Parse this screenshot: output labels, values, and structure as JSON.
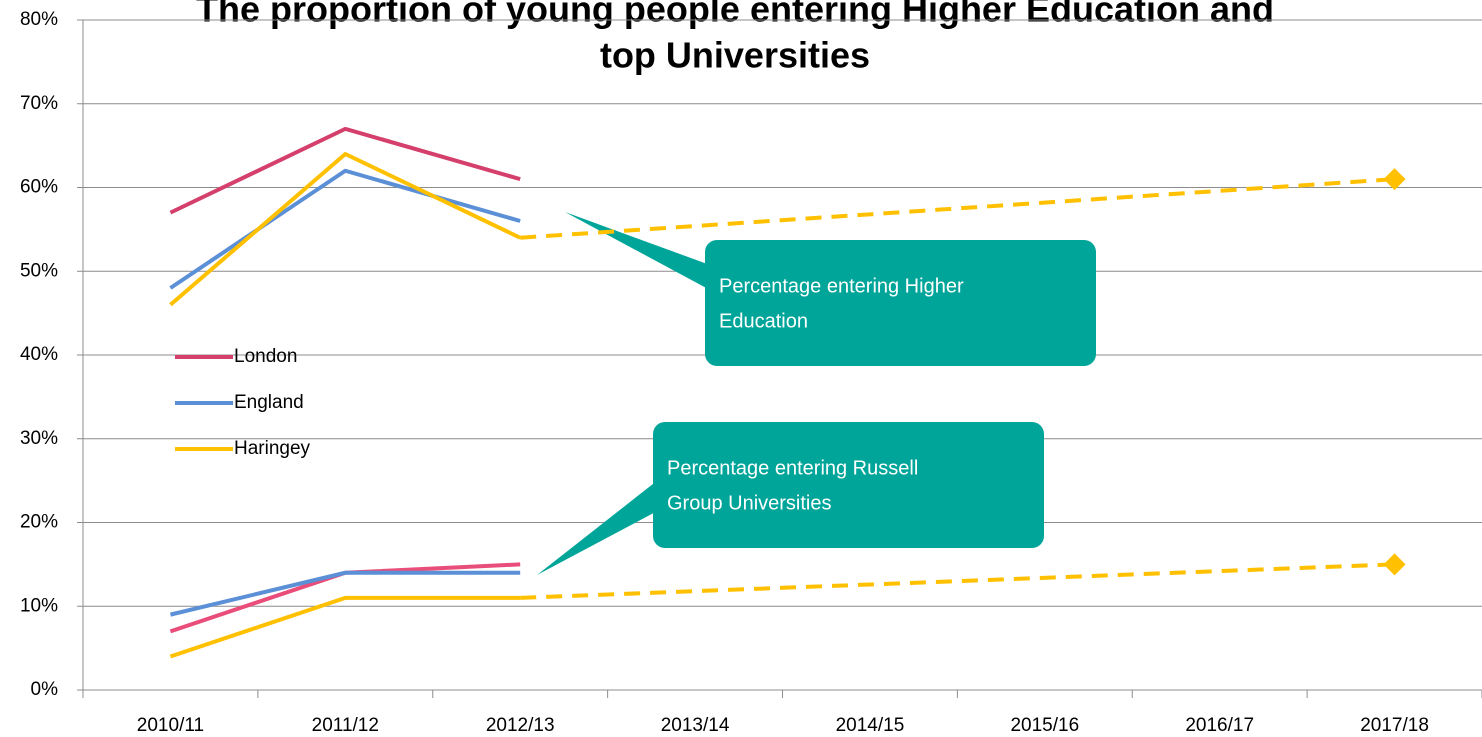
{
  "chart_data": {
    "type": "line",
    "title": [
      "The proportion of young people entering Higher Education and",
      "top Universities"
    ],
    "categories": [
      "2010/11",
      "2011/12",
      "2012/13",
      "2013/14",
      "2014/15",
      "2015/16",
      "2016/17",
      "2017/18"
    ],
    "ylim": [
      0,
      80
    ],
    "yticks": [
      {
        "value": 0,
        "label": "0%"
      },
      {
        "value": 10,
        "label": "10%"
      },
      {
        "value": 20,
        "label": "20%"
      },
      {
        "value": 30,
        "label": "30%"
      },
      {
        "value": 40,
        "label": "40%"
      },
      {
        "value": 50,
        "label": "50%"
      },
      {
        "value": 60,
        "label": "60%"
      },
      {
        "value": 70,
        "label": "70%"
      },
      {
        "value": 80,
        "label": "80%"
      }
    ],
    "grid": true,
    "legend": "left",
    "series": [
      {
        "name": "London",
        "color": "#d43f6c",
        "values": [
          57,
          67,
          61,
          null,
          null,
          null,
          null,
          null
        ]
      },
      {
        "name": "England",
        "color": "#5b8fd6",
        "values": [
          48,
          62,
          56,
          null,
          null,
          null,
          null,
          null
        ]
      },
      {
        "name": "Haringey",
        "color": "#ffc000",
        "values": [
          46,
          64,
          54,
          null,
          null,
          null,
          null,
          null
        ]
      },
      {
        "color": "#e94e7a",
        "values": [
          7,
          14,
          15,
          null,
          null,
          null,
          null,
          null
        ]
      },
      {
        "color": "#5b8fd6",
        "values": [
          9,
          14,
          14,
          null,
          null,
          null,
          null,
          null
        ]
      },
      {
        "color": "#ffc000",
        "values": [
          4,
          11,
          11,
          null,
          null,
          null,
          null,
          null
        ]
      },
      {
        "color": "#ffc000",
        "dashed": true,
        "connect_gaps": true,
        "marker": "diamond",
        "values": [
          null,
          null,
          54,
          null,
          null,
          null,
          null,
          61
        ]
      },
      {
        "color": "#ffc000",
        "dashed": true,
        "connect_gaps": true,
        "marker": "diamond",
        "values": [
          null,
          null,
          11,
          null,
          null,
          null,
          null,
          15
        ]
      }
    ],
    "annotations": [
      {
        "lines": [
          "Percentage entering Higher",
          "Education"
        ],
        "color": "#00a59a"
      },
      {
        "lines": [
          "Percentage entering Russell",
          "Group Universities"
        ],
        "color": "#00a59a"
      }
    ]
  }
}
